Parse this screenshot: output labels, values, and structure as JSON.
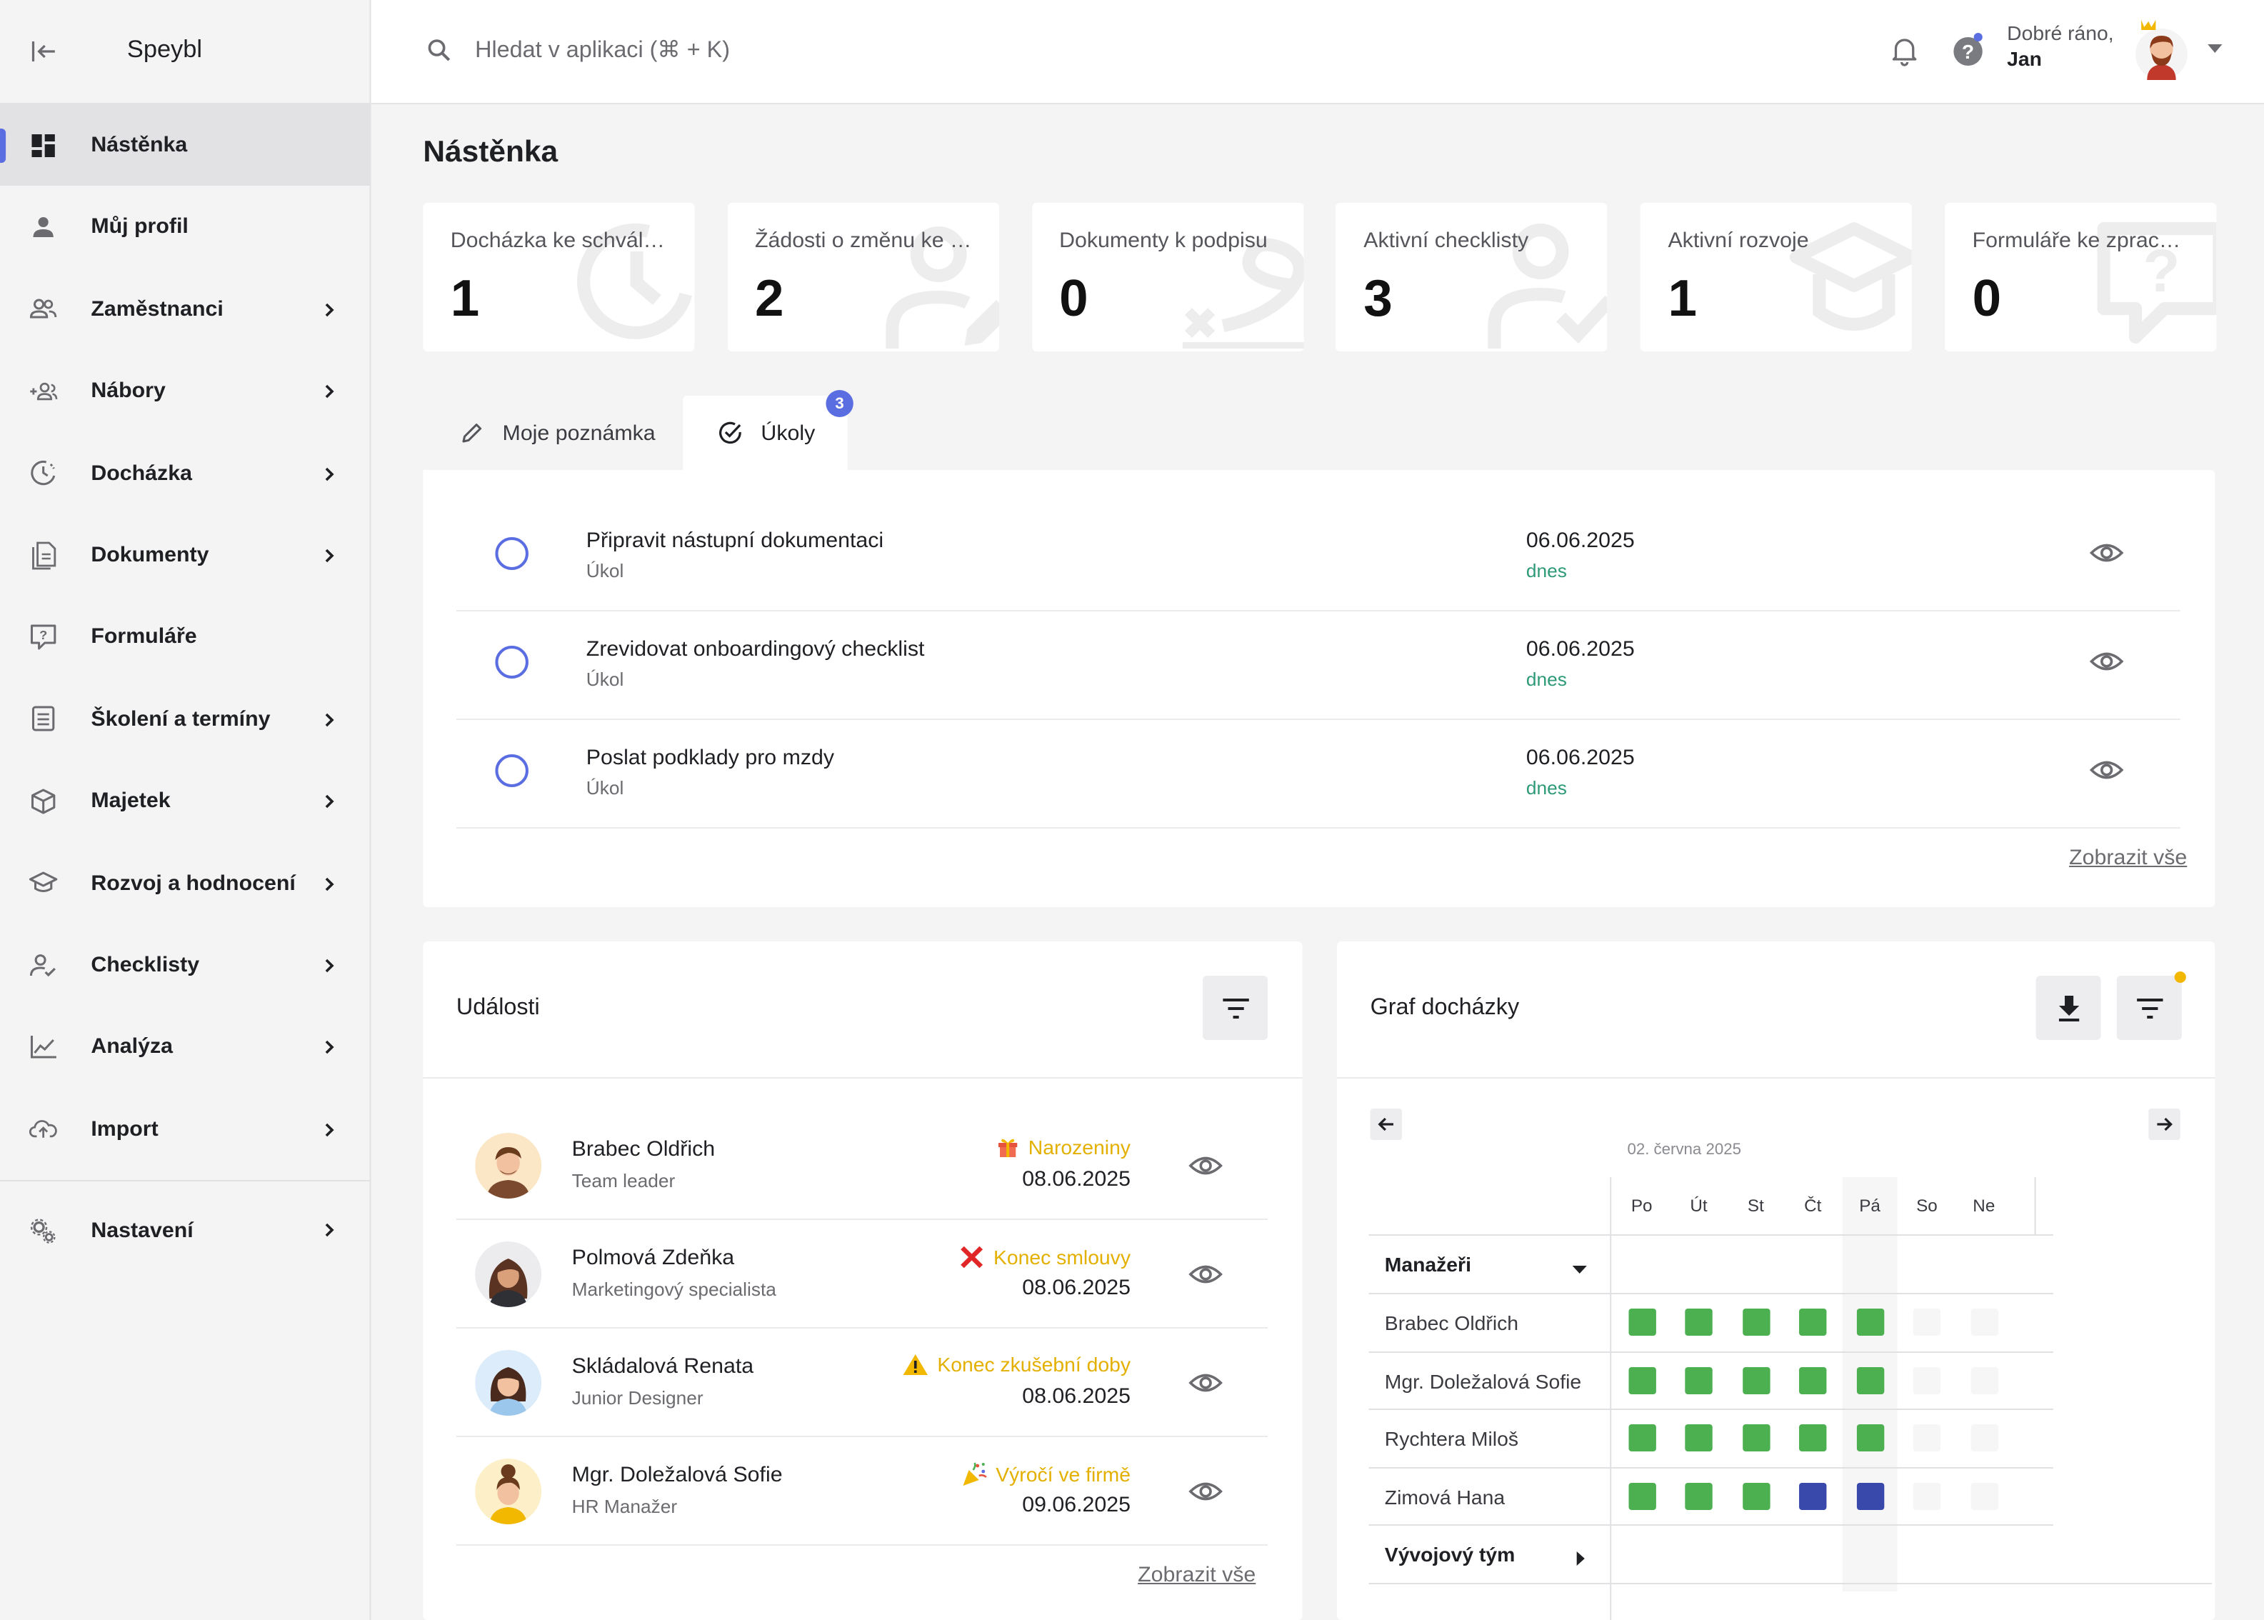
{
  "app": {
    "brand": "Speybl"
  },
  "sidebar": {
    "items": [
      {
        "label": "Nástěnka",
        "icon": "dashboard-icon",
        "active": true,
        "chevron": false
      },
      {
        "label": "Můj profil",
        "icon": "person-icon",
        "chevron": false
      },
      {
        "label": "Zaměstnanci",
        "icon": "people-icon",
        "chevron": true
      },
      {
        "label": "Nábory",
        "icon": "person-add-icon",
        "chevron": true
      },
      {
        "label": "Docházka",
        "icon": "clock-icon",
        "chevron": true
      },
      {
        "label": "Dokumenty",
        "icon": "document-icon",
        "chevron": true
      },
      {
        "label": "Formuláře",
        "icon": "form-icon",
        "chevron": false
      },
      {
        "label": "Školení a termíny",
        "icon": "calendar-list-icon",
        "chevron": true
      },
      {
        "label": "Majetek",
        "icon": "box-icon",
        "chevron": true
      },
      {
        "label": "Rozvoj a hodnocení",
        "icon": "graduation-icon",
        "chevron": true
      },
      {
        "label": "Checklisty",
        "icon": "person-check-icon",
        "chevron": true
      },
      {
        "label": "Analýza",
        "icon": "chart-line-icon",
        "chevron": true
      },
      {
        "label": "Import",
        "icon": "cloud-upload-icon",
        "chevron": true
      }
    ],
    "settings": {
      "label": "Nastavení",
      "icon": "gears-icon"
    }
  },
  "topbar": {
    "search_placeholder": "Hledat v aplikaci (⌘ + K)",
    "greeting": "Dobré ráno,",
    "user_name": "Jan"
  },
  "main": {
    "title": "Nástěnka",
    "stats": [
      {
        "label": "Docházka ke schválení",
        "value": "1",
        "icon": "clock-icon"
      },
      {
        "label": "Žádosti o změnu ke schválení",
        "value": "2",
        "icon": "person-edit-icon"
      },
      {
        "label": "Dokumenty k podpisu",
        "value": "0",
        "icon": "signature-icon"
      },
      {
        "label": "Aktivní checklisty",
        "value": "3",
        "icon": "person-check-icon"
      },
      {
        "label": "Aktivní rozvoje",
        "value": "1",
        "icon": "graduation-icon"
      },
      {
        "label": "Formuláře ke zpracování",
        "value": "0",
        "icon": "form-icon"
      }
    ],
    "tabs": [
      {
        "label": "Moje poznámka",
        "icon": "pencil-icon"
      },
      {
        "label": "Úkoly",
        "icon": "check-circle-icon",
        "badge": "3"
      }
    ],
    "tasks": [
      {
        "title": "Připravit nástupní dokumentaci",
        "type": "Úkol",
        "date": "06.06.2025",
        "relative": "dnes"
      },
      {
        "title": "Zrevidovat onboardingový checklist",
        "type": "Úkol",
        "date": "06.06.2025",
        "relative": "dnes"
      },
      {
        "title": "Poslat podklady pro mzdy",
        "type": "Úkol",
        "date": "06.06.2025",
        "relative": "dnes"
      }
    ],
    "tasks_show_all": "Zobrazit vše"
  },
  "events": {
    "title": "Události",
    "items": [
      {
        "name": "Brabec Oldřich",
        "role": "Team leader",
        "type": "Narozeniny",
        "type_icon": "gift-icon",
        "date": "08.06.2025"
      },
      {
        "name": "Polmová Zdeňka",
        "role": "Marketingový specialista",
        "type": "Konec smlouvy",
        "type_icon": "red-x-icon",
        "date": "08.06.2025"
      },
      {
        "name": "Skládalová Renata",
        "role": "Junior Designer",
        "type": "Konec zkušební doby",
        "type_icon": "warning-icon",
        "date": "08.06.2025"
      },
      {
        "name": "Mgr. Doležalová Sofie",
        "role": "HR Manažer",
        "type": "Výročí ve firmě",
        "type_icon": "party-popper-icon",
        "date": "09.06.2025"
      }
    ],
    "show_all": "Zobrazit vše"
  },
  "attendance": {
    "title": "Graf docházky",
    "month": "02. června 2025",
    "days": [
      "Po",
      "Út",
      "St",
      "Čt",
      "Pá",
      "So",
      "Ne"
    ],
    "groups": [
      {
        "name": "Manažeři",
        "expanded": true,
        "members": [
          {
            "name": "Brabec Oldřich",
            "cells": [
              "g",
              "g",
              "g",
              "g",
              "g",
              "e",
              "e"
            ]
          },
          {
            "name": "Mgr. Doležalová Sofie",
            "cells": [
              "g",
              "g",
              "g",
              "g",
              "g",
              "e",
              "e"
            ]
          },
          {
            "name": "Rychtera Miloš",
            "cells": [
              "g",
              "g",
              "g",
              "g",
              "g",
              "e",
              "e"
            ]
          },
          {
            "name": "Zimová Hana",
            "cells": [
              "g",
              "g",
              "g",
              "b",
              "b",
              "e",
              "e"
            ]
          }
        ]
      },
      {
        "name": "Vývojový tým",
        "expanded": false,
        "members": []
      }
    ],
    "colors": {
      "present": "#4caf50",
      "leave": "#3949ab",
      "empty": "#f6f6f7"
    }
  },
  "colors": {
    "accent": "#5b6ee1",
    "warning": "#e4b000",
    "today": "#2e9a78"
  }
}
